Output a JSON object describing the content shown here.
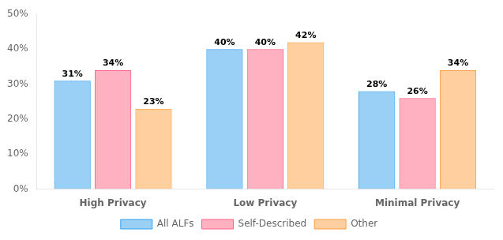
{
  "chart_data": {
    "type": "bar",
    "categories": [
      "High Privacy",
      "Low Privacy",
      "Minimal Privacy"
    ],
    "series": [
      {
        "name": "All ALFs",
        "values": [
          31,
          40,
          28
        ],
        "value_labels": [
          "31%",
          "40%",
          "28%"
        ]
      },
      {
        "name": "Self-Described",
        "values": [
          34,
          40,
          26
        ],
        "value_labels": [
          "34%",
          "40%",
          "26%"
        ]
      },
      {
        "name": "Other",
        "values": [
          23,
          42,
          34
        ],
        "value_labels": [
          "23%",
          "42%",
          "34%"
        ]
      }
    ],
    "ylim": [
      0,
      50
    ],
    "yticks": [
      {
        "value": 0,
        "label": "0%"
      },
      {
        "value": 10,
        "label": "10%"
      },
      {
        "value": 20,
        "label": "20%"
      },
      {
        "value": 30,
        "label": "30%"
      },
      {
        "value": 40,
        "label": "40%"
      },
      {
        "value": 50,
        "label": "50%"
      }
    ],
    "grid": false,
    "legend": "bottom",
    "data_labels": true
  }
}
